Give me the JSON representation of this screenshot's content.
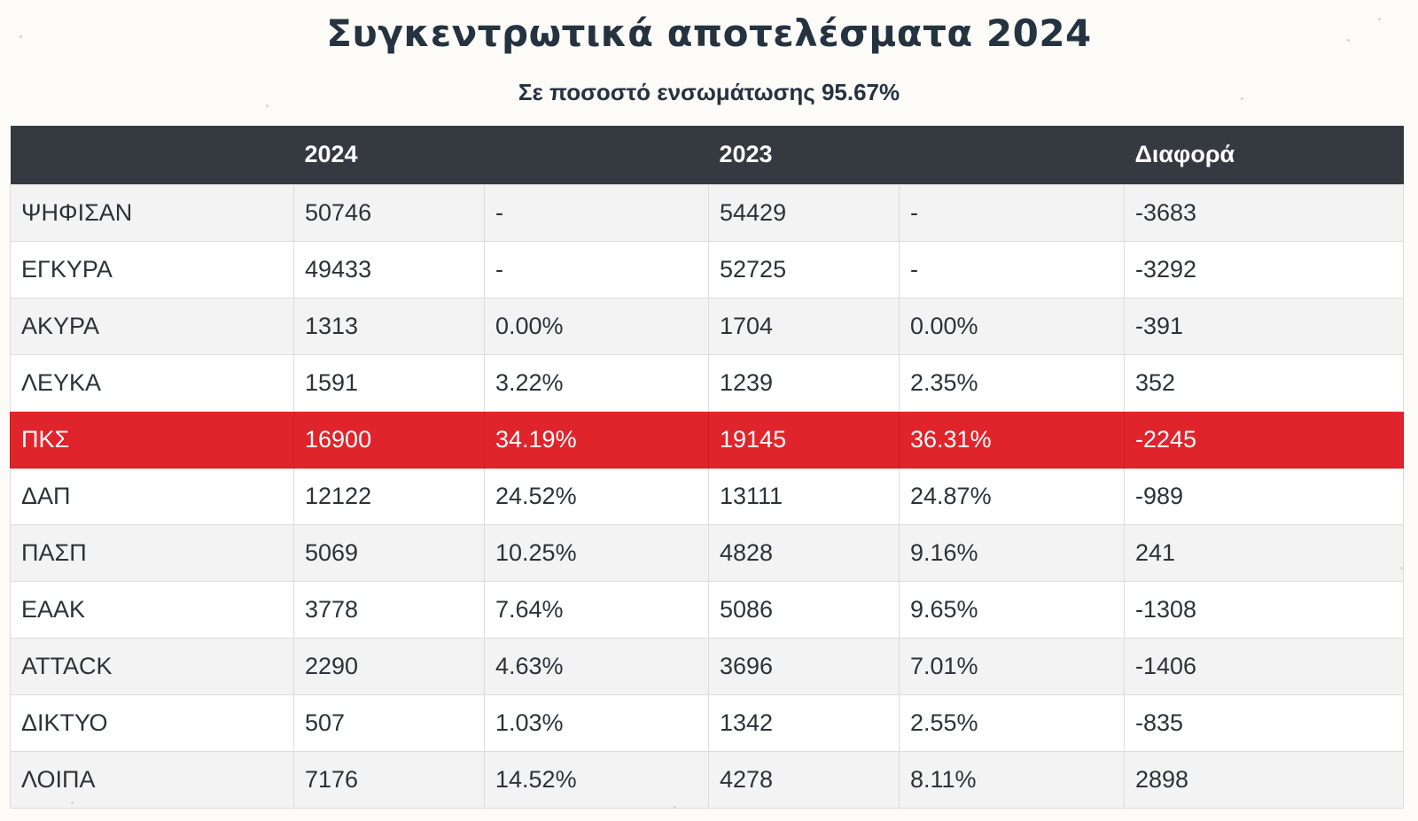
{
  "title": "Συγκεντρωτικά αποτελέσματα 2024",
  "subtitle": "Σε ποσοστό ενσωμάτωσης 95.67%",
  "colors": {
    "header_bg": "#343a40",
    "highlight_row": "#e0242b",
    "title_text": "#253240"
  },
  "table": {
    "headers": [
      "",
      "2024",
      "",
      "2023",
      "",
      "Διαφορά"
    ],
    "rows": [
      {
        "label": "ΨΗΦΙΣΑΝ",
        "votes_2024": "50746",
        "pct_2024": "-",
        "votes_2023": "54429",
        "pct_2023": "-",
        "diff": "-3683",
        "highlight": false
      },
      {
        "label": "ΕΓΚΥΡΑ",
        "votes_2024": "49433",
        "pct_2024": "-",
        "votes_2023": "52725",
        "pct_2023": "-",
        "diff": "-3292",
        "highlight": false
      },
      {
        "label": "ΑΚΥΡΑ",
        "votes_2024": "1313",
        "pct_2024": "0.00%",
        "votes_2023": "1704",
        "pct_2023": "0.00%",
        "diff": "-391",
        "highlight": false
      },
      {
        "label": "ΛΕΥΚΑ",
        "votes_2024": "1591",
        "pct_2024": "3.22%",
        "votes_2023": "1239",
        "pct_2023": "2.35%",
        "diff": "352",
        "highlight": false
      },
      {
        "label": "ΠΚΣ",
        "votes_2024": "16900",
        "pct_2024": "34.19%",
        "votes_2023": "19145",
        "pct_2023": "36.31%",
        "diff": "-2245",
        "highlight": true
      },
      {
        "label": "ΔΑΠ",
        "votes_2024": "12122",
        "pct_2024": "24.52%",
        "votes_2023": "13111",
        "pct_2023": "24.87%",
        "diff": "-989",
        "highlight": false
      },
      {
        "label": "ΠΑΣΠ",
        "votes_2024": "5069",
        "pct_2024": "10.25%",
        "votes_2023": "4828",
        "pct_2023": "9.16%",
        "diff": "241",
        "highlight": false
      },
      {
        "label": "ΕΑΑΚ",
        "votes_2024": "3778",
        "pct_2024": "7.64%",
        "votes_2023": "5086",
        "pct_2023": "9.65%",
        "diff": "-1308",
        "highlight": false
      },
      {
        "label": "ATTACK",
        "votes_2024": "2290",
        "pct_2024": "4.63%",
        "votes_2023": "3696",
        "pct_2023": "7.01%",
        "diff": "-1406",
        "highlight": false
      },
      {
        "label": "ΔΙΚΤΥΟ",
        "votes_2024": "507",
        "pct_2024": "1.03%",
        "votes_2023": "1342",
        "pct_2023": "2.55%",
        "diff": "-835",
        "highlight": false
      },
      {
        "label": "ΛΟΙΠΑ",
        "votes_2024": "7176",
        "pct_2024": "14.52%",
        "votes_2023": "4278",
        "pct_2023": "8.11%",
        "diff": "2898",
        "highlight": false
      }
    ]
  }
}
